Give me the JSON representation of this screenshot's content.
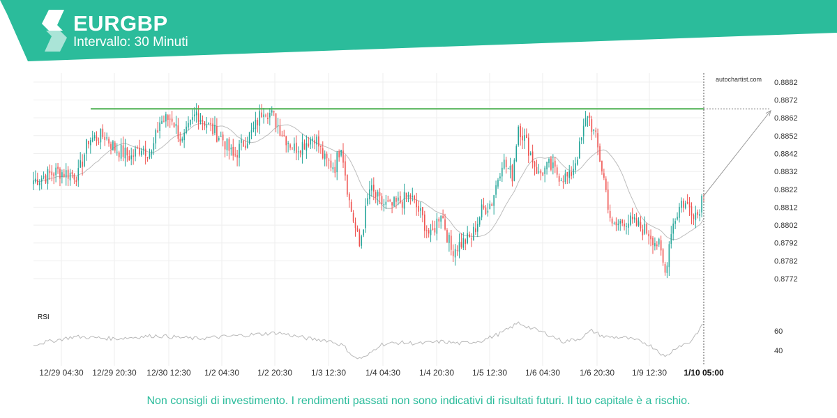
{
  "header": {
    "title": "EURGBP",
    "subtitle": "Intervallo: 30 Minuti",
    "band_color": "#2bbc9b",
    "logo_icon": "autochartist-s-logo-icon"
  },
  "footer": {
    "disclaimer": "Non consigli di investimento. I rendimenti passati non sono indicativi di risultati futuri. Il tuo capitale è a rischio."
  },
  "chart_data": {
    "type": "candlestick",
    "watermark": "autochartist.com",
    "colors": {
      "up": "#26a69a",
      "down": "#ef5350",
      "level": "#4caf50",
      "ma": "#bdbdbd",
      "rsi": "#b8b8b8",
      "grid": "#eeeeee",
      "axis_text": "#333333"
    },
    "y_ticks": [
      "0.8882",
      "0.8872",
      "0.8862",
      "0.8852",
      "0.8842",
      "0.8832",
      "0.8822",
      "0.8812",
      "0.8802",
      "0.8792",
      "0.8782",
      "0.8772"
    ],
    "ylim": [
      0.8765,
      0.8887
    ],
    "x_ticks": [
      "12/29 04:30",
      "12/29 20:30",
      "12/30 12:30",
      "1/2 04:30",
      "1/2 20:30",
      "1/3 12:30",
      "1/4 04:30",
      "1/4 20:30",
      "1/5 12:30",
      "1/6 04:30",
      "1/6 20:30",
      "1/9 12:30"
    ],
    "x_last_label": "1/10 05:00",
    "candle_count": 330,
    "key_closes": [
      [
        0,
        0.8827
      ],
      [
        12,
        0.8832
      ],
      [
        22,
        0.883
      ],
      [
        27,
        0.885
      ],
      [
        35,
        0.8852
      ],
      [
        40,
        0.8845
      ],
      [
        48,
        0.884
      ],
      [
        53,
        0.8846
      ],
      [
        58,
        0.8842
      ],
      [
        62,
        0.886
      ],
      [
        68,
        0.8862
      ],
      [
        73,
        0.8848
      ],
      [
        80,
        0.8865
      ],
      [
        88,
        0.8855
      ],
      [
        93,
        0.885
      ],
      [
        98,
        0.884
      ],
      [
        103,
        0.8848
      ],
      [
        108,
        0.8855
      ],
      [
        113,
        0.8868
      ],
      [
        118,
        0.8862
      ],
      [
        123,
        0.8852
      ],
      [
        128,
        0.8845
      ],
      [
        133,
        0.8848
      ],
      [
        138,
        0.8852
      ],
      [
        143,
        0.8838
      ],
      [
        148,
        0.8835
      ],
      [
        151,
        0.8848
      ],
      [
        155,
        0.8815
      ],
      [
        160,
        0.879
      ],
      [
        165,
        0.8822
      ],
      [
        170,
        0.8815
      ],
      [
        175,
        0.8812
      ],
      [
        180,
        0.8815
      ],
      [
        185,
        0.8818
      ],
      [
        190,
        0.8808
      ],
      [
        195,
        0.8795
      ],
      [
        200,
        0.881
      ],
      [
        205,
        0.8788
      ],
      [
        210,
        0.8792
      ],
      [
        215,
        0.8795
      ],
      [
        220,
        0.881
      ],
      [
        225,
        0.8815
      ],
      [
        230,
        0.8838
      ],
      [
        235,
        0.883
      ],
      [
        238,
        0.8858
      ],
      [
        243,
        0.8845
      ],
      [
        248,
        0.883
      ],
      [
        253,
        0.8835
      ],
      [
        258,
        0.883
      ],
      [
        263,
        0.8828
      ],
      [
        268,
        0.8845
      ],
      [
        272,
        0.8865
      ],
      [
        276,
        0.885
      ],
      [
        280,
        0.8828
      ],
      [
        284,
        0.88
      ],
      [
        290,
        0.8805
      ],
      [
        296,
        0.8802
      ],
      [
        302,
        0.8798
      ],
      [
        307,
        0.879
      ],
      [
        310,
        0.8775
      ],
      [
        313,
        0.88
      ],
      [
        318,
        0.8815
      ],
      [
        322,
        0.8812
      ],
      [
        326,
        0.8808
      ],
      [
        329,
        0.8822
      ]
    ],
    "resistance_level": 0.8867,
    "projection_target": 0.8866,
    "rsi": {
      "label": "RSI",
      "ticks": [
        "60",
        "40"
      ],
      "ylim": [
        28,
        74
      ],
      "key_values": [
        [
          0,
          46
        ],
        [
          20,
          54
        ],
        [
          40,
          52
        ],
        [
          60,
          55
        ],
        [
          80,
          52
        ],
        [
          100,
          55
        ],
        [
          120,
          58
        ],
        [
          135,
          52
        ],
        [
          145,
          50
        ],
        [
          152,
          45
        ],
        [
          158,
          32
        ],
        [
          163,
          33
        ],
        [
          170,
          46
        ],
        [
          180,
          48
        ],
        [
          190,
          47
        ],
        [
          200,
          49
        ],
        [
          210,
          47
        ],
        [
          220,
          50
        ],
        [
          230,
          58
        ],
        [
          238,
          68
        ],
        [
          245,
          62
        ],
        [
          252,
          57
        ],
        [
          260,
          49
        ],
        [
          268,
          52
        ],
        [
          274,
          60
        ],
        [
          280,
          54
        ],
        [
          290,
          53
        ],
        [
          300,
          48
        ],
        [
          306,
          41
        ],
        [
          310,
          33
        ],
        [
          316,
          44
        ],
        [
          322,
          48
        ],
        [
          329,
          67
        ]
      ]
    }
  }
}
